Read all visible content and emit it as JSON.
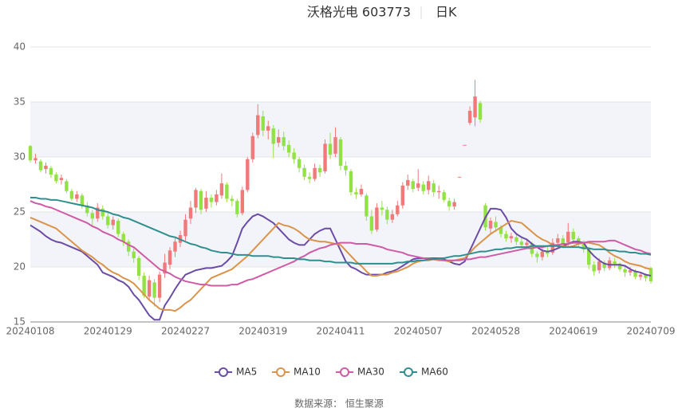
{
  "chart_data": {
    "type": "candlestick",
    "title": "沃格光电 603773",
    "subtitle": "日K",
    "source": "数据来源： 恒生聚源",
    "up_color": "#f07a7a",
    "down_color": "#93e245",
    "grid": true,
    "split_area": true,
    "ylim": [
      15,
      40
    ],
    "yticks": [
      15,
      20,
      25,
      30,
      35,
      40
    ],
    "categories": [
      "20240108",
      null,
      null,
      null,
      null,
      null,
      null,
      null,
      null,
      null,
      null,
      null,
      null,
      null,
      null,
      "20240129",
      null,
      null,
      null,
      null,
      null,
      null,
      null,
      null,
      null,
      null,
      null,
      null,
      null,
      null,
      "20240227",
      null,
      null,
      null,
      null,
      null,
      null,
      null,
      null,
      null,
      null,
      null,
      null,
      null,
      null,
      "20240319",
      null,
      null,
      null,
      null,
      null,
      null,
      null,
      null,
      null,
      null,
      null,
      null,
      null,
      null,
      "20240411",
      null,
      null,
      null,
      null,
      null,
      null,
      null,
      null,
      null,
      null,
      null,
      null,
      null,
      null,
      "20240507",
      null,
      null,
      null,
      null,
      null,
      null,
      null,
      null,
      null,
      null,
      null,
      null,
      null,
      null,
      "20240528",
      null,
      null,
      null,
      null,
      null,
      null,
      null,
      null,
      null,
      null,
      null,
      null,
      null,
      null,
      "20240619",
      null,
      null,
      null,
      null,
      null,
      null,
      null,
      null,
      null,
      null,
      null,
      null,
      null,
      null,
      "20240709"
    ],
    "ohlc": [
      [
        31.0,
        29.7,
        29.5,
        31.1
      ],
      [
        29.7,
        29.9,
        29.4,
        30.3
      ],
      [
        29.6,
        28.8,
        28.6,
        29.8
      ],
      [
        28.9,
        29.2,
        28.5,
        29.5
      ],
      [
        29.0,
        28.4,
        28.1,
        29.2
      ],
      [
        28.4,
        27.8,
        27.6,
        28.6
      ],
      [
        27.9,
        28.1,
        27.5,
        28.4
      ],
      [
        27.8,
        26.9,
        26.7,
        28.0
      ],
      [
        26.9,
        26.2,
        26.0,
        27.1
      ],
      [
        26.2,
        26.6,
        25.9,
        26.9
      ],
      [
        26.5,
        25.6,
        25.3,
        26.7
      ],
      [
        25.6,
        24.9,
        24.6,
        25.9
      ],
      [
        24.9,
        24.4,
        23.8,
        25.2
      ],
      [
        24.4,
        25.4,
        24.1,
        25.8
      ],
      [
        25.3,
        24.6,
        24.3,
        25.6
      ],
      [
        24.6,
        23.8,
        23.5,
        24.9
      ],
      [
        23.8,
        24.3,
        23.4,
        24.6
      ],
      [
        24.2,
        23.0,
        22.7,
        24.4
      ],
      [
        23.0,
        22.3,
        21.9,
        23.2
      ],
      [
        22.3,
        21.4,
        21.0,
        22.5
      ],
      [
        21.4,
        20.8,
        20.4,
        21.7
      ],
      [
        20.8,
        19.2,
        18.8,
        21.0
      ],
      [
        19.2,
        17.4,
        17.2,
        19.5
      ],
      [
        17.3,
        18.8,
        16.9,
        19.2
      ],
      [
        18.6,
        17.2,
        16.4,
        18.9
      ],
      [
        17.2,
        19.3,
        16.8,
        19.6
      ],
      [
        19.4,
        20.4,
        19.0,
        21.2
      ],
      [
        20.2,
        21.5,
        19.8,
        21.8
      ],
      [
        21.4,
        22.3,
        20.9,
        22.6
      ],
      [
        22.2,
        22.9,
        21.8,
        23.3
      ],
      [
        22.8,
        24.3,
        22.4,
        24.8
      ],
      [
        24.4,
        25.4,
        23.9,
        26.0
      ],
      [
        25.4,
        27.0,
        24.9,
        27.2
      ],
      [
        26.9,
        25.2,
        24.8,
        27.1
      ],
      [
        25.3,
        26.3,
        25.0,
        26.9
      ],
      [
        26.3,
        25.9,
        25.4,
        26.6
      ],
      [
        25.9,
        26.6,
        25.6,
        27.0
      ],
      [
        26.5,
        27.6,
        26.2,
        28.5
      ],
      [
        27.5,
        26.2,
        25.9,
        27.7
      ],
      [
        26.2,
        26.0,
        25.5,
        26.5
      ],
      [
        26.0,
        24.8,
        24.5,
        26.2
      ],
      [
        24.9,
        27.0,
        24.7,
        27.3
      ],
      [
        27.0,
        29.8,
        26.8,
        30.0
      ],
      [
        29.8,
        31.9,
        29.5,
        32.2
      ],
      [
        32.0,
        33.8,
        31.7,
        34.8
      ],
      [
        33.7,
        32.4,
        31.9,
        34.2
      ],
      [
        32.4,
        32.8,
        31.6,
        33.3
      ],
      [
        32.6,
        31.2,
        29.9,
        32.9
      ],
      [
        31.3,
        31.8,
        30.9,
        32.5
      ],
      [
        31.8,
        31.0,
        30.6,
        32.3
      ],
      [
        31.1,
        30.4,
        30.0,
        31.5
      ],
      [
        30.4,
        29.8,
        29.4,
        30.8
      ],
      [
        29.8,
        29.0,
        28.6,
        30.0
      ],
      [
        29.0,
        28.2,
        27.9,
        29.3
      ],
      [
        28.2,
        28.0,
        27.6,
        28.6
      ],
      [
        28.0,
        29.0,
        27.8,
        29.4
      ],
      [
        29.0,
        28.6,
        28.2,
        29.3
      ],
      [
        28.7,
        31.2,
        28.5,
        31.6
      ],
      [
        31.2,
        30.2,
        29.8,
        32.2
      ],
      [
        30.3,
        31.8,
        30.0,
        32.7
      ],
      [
        31.6,
        29.2,
        28.8,
        31.8
      ],
      [
        29.2,
        28.8,
        28.3,
        29.6
      ],
      [
        28.7,
        26.8,
        26.5,
        28.9
      ],
      [
        26.8,
        26.6,
        26.2,
        27.2
      ],
      [
        26.6,
        27.1,
        26.4,
        27.5
      ],
      [
        26.5,
        24.6,
        24.2,
        26.7
      ],
      [
        24.6,
        23.3,
        23.0,
        25.2
      ],
      [
        23.4,
        25.4,
        23.2,
        25.8
      ],
      [
        25.4,
        25.2,
        24.7,
        26.0
      ],
      [
        25.2,
        24.3,
        23.9,
        25.5
      ],
      [
        24.3,
        24.8,
        24.0,
        25.2
      ],
      [
        24.8,
        25.6,
        24.6,
        26.0
      ],
      [
        25.6,
        27.4,
        25.3,
        27.7
      ],
      [
        27.4,
        27.9,
        27.0,
        28.4
      ],
      [
        27.8,
        27.1,
        26.8,
        28.0
      ],
      [
        27.2,
        27.6,
        26.9,
        28.9
      ],
      [
        27.5,
        26.9,
        26.6,
        27.8
      ],
      [
        27.0,
        27.8,
        26.6,
        28.3
      ],
      [
        27.6,
        26.8,
        26.4,
        27.9
      ],
      [
        26.8,
        26.9,
        26.2,
        27.4
      ],
      [
        26.8,
        26.1,
        25.9,
        27.0
      ],
      [
        26.0,
        25.5,
        25.1,
        26.3
      ],
      [
        25.5,
        25.9,
        25.2,
        26.2
      ],
      [
        28.2,
        28.2,
        28.2,
        28.2
      ],
      [
        31.1,
        31.1,
        31.1,
        31.1
      ],
      [
        33.1,
        34.2,
        32.9,
        34.6
      ],
      [
        33.6,
        35.5,
        32.8,
        37.0
      ],
      [
        34.9,
        33.4,
        33.1,
        35.1
      ],
      [
        25.6,
        23.6,
        23.3,
        25.8
      ],
      [
        23.5,
        24.2,
        23.0,
        24.5
      ],
      [
        24.1,
        23.6,
        23.2,
        24.6
      ],
      [
        23.6,
        23.0,
        22.7,
        23.8
      ],
      [
        23.0,
        22.6,
        22.3,
        23.3
      ],
      [
        22.6,
        22.8,
        22.2,
        23.1
      ],
      [
        22.7,
        22.3,
        22.0,
        23.0
      ],
      [
        22.3,
        22.0,
        21.7,
        22.6
      ],
      [
        22.0,
        22.2,
        21.8,
        22.5
      ],
      [
        22.1,
        21.2,
        20.9,
        22.3
      ],
      [
        21.2,
        20.9,
        20.4,
        21.4
      ],
      [
        20.9,
        21.4,
        20.6,
        21.7
      ],
      [
        21.4,
        21.2,
        20.9,
        21.9
      ],
      [
        21.3,
        22.2,
        21.1,
        22.6
      ],
      [
        22.2,
        22.6,
        21.8,
        23.0
      ],
      [
        22.6,
        22.1,
        21.7,
        22.9
      ],
      [
        22.2,
        23.2,
        21.9,
        24.0
      ],
      [
        23.2,
        22.5,
        22.1,
        23.5
      ],
      [
        22.6,
        22.2,
        21.8,
        22.8
      ],
      [
        22.2,
        21.6,
        21.3,
        22.4
      ],
      [
        21.6,
        20.2,
        19.8,
        21.8
      ],
      [
        20.2,
        19.6,
        19.2,
        20.5
      ],
      [
        19.7,
        20.5,
        19.4,
        20.8
      ],
      [
        20.4,
        19.9,
        19.6,
        20.6
      ],
      [
        19.9,
        20.6,
        19.7,
        20.9
      ],
      [
        20.5,
        20.3,
        19.9,
        20.8
      ],
      [
        20.3,
        19.8,
        19.6,
        20.4
      ],
      [
        19.8,
        19.5,
        19.1,
        20.1
      ],
      [
        19.5,
        19.7,
        19.2,
        20.0
      ],
      [
        19.6,
        19.1,
        18.9,
        19.8
      ],
      [
        19.1,
        19.3,
        18.8,
        19.5
      ],
      [
        19.3,
        19.0,
        18.7,
        19.4
      ],
      [
        19.9,
        18.7,
        18.5,
        20.0
      ]
    ],
    "series": [
      {
        "name": "MA5",
        "color": "#6a4ca6",
        "values": [
          23.8,
          23.5,
          23.2,
          22.8,
          22.5,
          22.3,
          22.2,
          22.0,
          21.8,
          21.6,
          21.4,
          21.0,
          20.6,
          20.2,
          19.5,
          19.3,
          19.1,
          18.8,
          18.6,
          18.2,
          17.5,
          17.0,
          16.3,
          15.6,
          15.2,
          15.2,
          16.5,
          17.2,
          18.0,
          18.7,
          19.3,
          19.5,
          19.7,
          19.8,
          19.9,
          19.9,
          20.0,
          20.1,
          20.5,
          21.0,
          22.2,
          23.5,
          24.1,
          24.6,
          24.8,
          24.6,
          24.3,
          24.0,
          23.5,
          23.0,
          22.5,
          22.2,
          22.0,
          22.0,
          22.5,
          23.0,
          23.3,
          23.5,
          23.5,
          22.5,
          21.5,
          20.5,
          20.0,
          19.8,
          19.5,
          19.3,
          19.3,
          19.3,
          19.3,
          19.5,
          19.6,
          19.8,
          20.1,
          20.4,
          20.7,
          20.8,
          20.8,
          20.8,
          20.8,
          20.8,
          20.7,
          20.5,
          20.3,
          20.2,
          20.5,
          21.5,
          22.5,
          23.5,
          24.5,
          25.3,
          25.3,
          25.2,
          24.5,
          23.5,
          23.0,
          22.7,
          22.5,
          22.1,
          21.8,
          21.5,
          21.4,
          21.5,
          21.7,
          21.9,
          22.1,
          22.3,
          22.3,
          22.2,
          21.5,
          21.0,
          20.6,
          20.3,
          20.2,
          20.2,
          20.2,
          20.1,
          19.8,
          19.6,
          19.5,
          19.3,
          19.2
        ]
      },
      {
        "name": "MA10",
        "color": "#d9944a",
        "values": [
          24.5,
          24.3,
          24.1,
          23.9,
          23.7,
          23.5,
          23.1,
          22.7,
          22.3,
          21.9,
          21.5,
          21.2,
          20.9,
          20.5,
          20.2,
          19.8,
          19.5,
          19.3,
          19.0,
          18.8,
          18.5,
          18.0,
          17.5,
          17.0,
          16.6,
          16.2,
          16.1,
          16.1,
          16.0,
          16.3,
          16.7,
          17.0,
          17.5,
          18.0,
          18.5,
          19.0,
          19.2,
          19.4,
          19.6,
          19.8,
          20.2,
          20.6,
          21.0,
          21.5,
          22.0,
          22.5,
          23.0,
          23.5,
          24.0,
          23.8,
          23.7,
          23.5,
          23.2,
          22.8,
          22.5,
          22.4,
          22.3,
          22.3,
          22.2,
          22.1,
          22.0,
          21.5,
          21.0,
          20.5,
          20.1,
          19.6,
          19.2,
          19.2,
          19.3,
          19.3,
          19.5,
          19.6,
          19.8,
          20.0,
          20.3,
          20.5,
          20.6,
          20.6,
          20.7,
          20.6,
          20.6,
          20.5,
          20.6,
          20.7,
          20.8,
          21.3,
          21.8,
          22.2,
          22.6,
          23.0,
          23.3,
          23.6,
          23.9,
          24.2,
          24.1,
          24.0,
          23.6,
          23.2,
          22.8,
          22.5,
          22.3,
          22.0,
          21.9,
          21.9,
          21.8,
          21.9,
          22.1,
          22.2,
          22.2,
          22.1,
          22.0,
          21.7,
          21.3,
          21.0,
          20.8,
          20.5,
          20.3,
          20.2,
          20.1,
          19.9,
          19.8
        ]
      },
      {
        "name": "MA30",
        "color": "#cf5aa6",
        "values": [
          26.0,
          25.8,
          25.7,
          25.5,
          25.4,
          25.2,
          25.0,
          24.8,
          24.6,
          24.4,
          24.2,
          24.0,
          23.7,
          23.5,
          23.2,
          23.0,
          22.8,
          22.5,
          22.3,
          22.0,
          21.8,
          21.4,
          21.0,
          20.6,
          20.2,
          19.8,
          19.6,
          19.4,
          19.1,
          18.9,
          18.7,
          18.6,
          18.5,
          18.4,
          18.4,
          18.3,
          18.3,
          18.3,
          18.3,
          18.4,
          18.4,
          18.6,
          18.8,
          18.9,
          19.1,
          19.3,
          19.5,
          19.7,
          19.9,
          20.1,
          20.3,
          20.5,
          20.8,
          21.0,
          21.3,
          21.5,
          21.7,
          21.8,
          22.0,
          22.1,
          22.2,
          22.2,
          22.2,
          22.1,
          22.1,
          22.1,
          22.0,
          21.9,
          21.8,
          21.6,
          21.5,
          21.4,
          21.3,
          21.1,
          21.0,
          20.9,
          20.8,
          20.8,
          20.7,
          20.7,
          20.6,
          20.6,
          20.6,
          20.6,
          20.7,
          20.7,
          20.8,
          20.9,
          20.9,
          21.0,
          21.1,
          21.2,
          21.3,
          21.4,
          21.5,
          21.6,
          21.7,
          21.7,
          21.8,
          21.8,
          21.9,
          22.0,
          22.0,
          22.1,
          22.1,
          22.2,
          22.2,
          22.2,
          22.3,
          22.3,
          22.3,
          22.3,
          22.4,
          22.4,
          22.2,
          22.0,
          21.8,
          21.6,
          21.5,
          21.3,
          21.2
        ]
      },
      {
        "name": "MA60",
        "color": "#2f8f8f",
        "values": [
          26.3,
          26.3,
          26.2,
          26.2,
          26.1,
          26.1,
          26.0,
          25.9,
          25.8,
          25.7,
          25.6,
          25.5,
          25.4,
          25.2,
          25.1,
          25.0,
          24.8,
          24.7,
          24.5,
          24.4,
          24.2,
          24.0,
          23.8,
          23.6,
          23.4,
          23.2,
          23.0,
          22.8,
          22.7,
          22.5,
          22.3,
          22.1,
          22.0,
          21.8,
          21.7,
          21.5,
          21.4,
          21.3,
          21.3,
          21.2,
          21.1,
          21.1,
          21.1,
          21.0,
          21.0,
          21.0,
          21.0,
          20.9,
          20.9,
          20.8,
          20.8,
          20.8,
          20.7,
          20.7,
          20.6,
          20.6,
          20.6,
          20.5,
          20.5,
          20.4,
          20.4,
          20.4,
          20.4,
          20.3,
          20.3,
          20.3,
          20.3,
          20.3,
          20.3,
          20.3,
          20.3,
          20.4,
          20.4,
          20.5,
          20.5,
          20.6,
          20.6,
          20.7,
          20.7,
          20.8,
          20.8,
          20.9,
          21.0,
          21.0,
          21.1,
          21.2,
          21.3,
          21.4,
          21.4,
          21.5,
          21.6,
          21.6,
          21.7,
          21.7,
          21.8,
          21.8,
          21.8,
          21.9,
          21.9,
          21.9,
          21.9,
          21.9,
          21.9,
          21.8,
          21.8,
          21.8,
          21.8,
          21.7,
          21.7,
          21.6,
          21.6,
          21.6,
          21.5,
          21.5,
          21.4,
          21.4,
          21.3,
          21.3,
          21.2,
          21.2,
          21.1
        ]
      }
    ]
  }
}
